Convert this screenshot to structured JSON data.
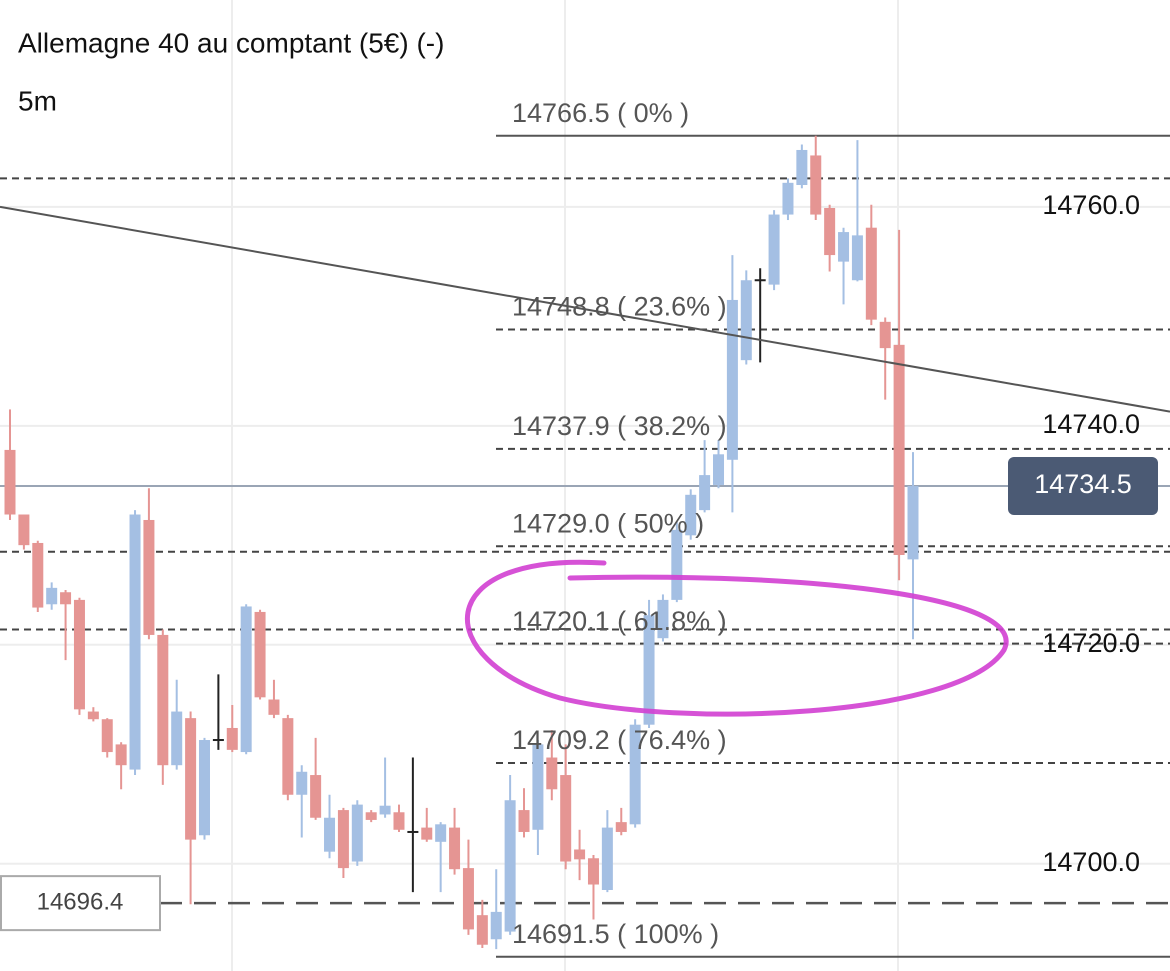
{
  "chart_data": {
    "type": "candlestick",
    "title": "Allemagne 40 au comptant (5€) (-)",
    "subtitle": "5m",
    "ylim": [
      14690.2,
      14778.9
    ],
    "yticks": [
      {
        "value": 14700,
        "label": "14700.0"
      },
      {
        "value": 14720,
        "label": "14720.0"
      },
      {
        "value": 14740,
        "label": "14740.0"
      },
      {
        "value": 14760,
        "label": "14760.0"
      }
    ],
    "grid": true,
    "up_color": "#a4bfe3",
    "down_color": "#e59593",
    "open": [
      14737.8,
      14731.9,
      14729.3,
      14723.7,
      14724.8,
      14724.1,
      14713.9,
      14713.2,
      14710.9,
      14708.6,
      14731.4,
      14720.9,
      14709.0,
      14713.3,
      14702.6,
      14711.3,
      14712.4,
      14710.2,
      14723.0,
      14715.0,
      14713.3,
      14706.3,
      14708.1,
      14701.1,
      14704.9,
      14700.2,
      14704.7,
      14704.5,
      14704.7,
      14702.9,
      14703.3,
      14702.0,
      14703.3,
      14699.6,
      14695.3,
      14693.1,
      14693.8,
      14704.9,
      14703.1,
      14709.7,
      14708.1,
      14701.3,
      14700.5,
      14697.6,
      14703.8,
      14703.6,
      14712.7,
      14720.6,
      14724.1,
      14730.0,
      14732.3,
      14734.6,
      14736.9,
      14746.0,
      14753.3,
      14752.9,
      14759.3,
      14762.0,
      14764.7,
      14759.9,
      14755.0,
      14753.3,
      14758.1,
      14749.5,
      14747.4,
      14727.8
    ],
    "high": [
      14741.5,
      14731.9,
      14729.5,
      14725.7,
      14725.0,
      14724.3,
      14714.3,
      14713.3,
      14711.1,
      14732.3,
      14734.3,
      14721.4,
      14716.8,
      14713.9,
      14711.5,
      14717.3,
      14714.5,
      14723.7,
      14723.2,
      14716.8,
      14713.6,
      14709.0,
      14711.5,
      14706.3,
      14705.1,
      14705.8,
      14704.9,
      14709.7,
      14705.4,
      14709.7,
      14705.1,
      14703.8,
      14705.1,
      14702.2,
      14696.7,
      14699.5,
      14708.1,
      14706.9,
      14711.3,
      14712.2,
      14710.9,
      14703.1,
      14700.8,
      14704.9,
      14705.1,
      14713.2,
      14724.1,
      14724.6,
      14731.2,
      14734.2,
      14738.7,
      14738.7,
      14755.6,
      14754.2,
      14754.4,
      14759.7,
      14762.6,
      14765.7,
      14766.5,
      14760.2,
      14758.1,
      14766.1,
      14760.2,
      14749.9,
      14757.9,
      14737.6
    ],
    "low": [
      14731.4,
      14728.7,
      14723.0,
      14723.2,
      14718.6,
      14713.6,
      14713.0,
      14709.7,
      14706.8,
      14708.1,
      14720.5,
      14707.2,
      14708.6,
      14696.3,
      14702.2,
      14710.4,
      14710.2,
      14710.0,
      14715.0,
      14713.3,
      14705.8,
      14702.4,
      14704.0,
      14700.5,
      14698.7,
      14699.8,
      14703.8,
      14704.2,
      14702.9,
      14697.4,
      14702.0,
      14697.4,
      14699.0,
      14693.5,
      14692.3,
      14692.2,
      14693.5,
      14702.4,
      14700.8,
      14705.8,
      14699.5,
      14698.5,
      14694.9,
      14697.4,
      14702.6,
      14703.3,
      14712.4,
      14720.3,
      14723.9,
      14729.6,
      14732.1,
      14734.3,
      14732.1,
      14745.6,
      14745.8,
      14752.4,
      14758.8,
      14761.7,
      14758.8,
      14754.1,
      14751.1,
      14753.2,
      14749.2,
      14742.4,
      14725.9,
      14720.5
    ],
    "close": [
      14731.9,
      14729.1,
      14723.4,
      14725.2,
      14723.7,
      14714.1,
      14713.2,
      14710.2,
      14709.0,
      14731.9,
      14720.9,
      14709.0,
      14713.9,
      14702.2,
      14711.3,
      14711.3,
      14710.4,
      14723.5,
      14715.2,
      14713.6,
      14706.3,
      14708.4,
      14704.2,
      14704.2,
      14699.6,
      14705.4,
      14704.0,
      14705.3,
      14703.1,
      14702.9,
      14702.2,
      14703.6,
      14699.5,
      14694.0,
      14692.6,
      14695.6,
      14705.8,
      14702.9,
      14710.9,
      14706.8,
      14700.2,
      14700.4,
      14698.1,
      14703.3,
      14702.9,
      14712.7,
      14722.7,
      14724.1,
      14730.5,
      14733.7,
      14735.5,
      14737.4,
      14751.5,
      14753.3,
      14753.3,
      14759.3,
      14762.2,
      14765.2,
      14759.3,
      14755.6,
      14757.7,
      14757.4,
      14749.7,
      14747.1,
      14728.2,
      14734.5
    ],
    "fib_levels": [
      {
        "value": 14766.5,
        "label": "14766.5 ( 0% )"
      },
      {
        "value": 14748.8,
        "label": "14748.8 ( 23.6% )"
      },
      {
        "value": 14737.9,
        "label": "14737.9 ( 38.2% )"
      },
      {
        "value": 14729.0,
        "label": "14729.0 ( 50% )"
      },
      {
        "value": 14720.1,
        "label": "14720.1 ( 61.8% )"
      },
      {
        "value": 14709.2,
        "label": "14709.2 ( 76.4% )"
      },
      {
        "value": 14691.5,
        "label": "14691.5 ( 100% )"
      }
    ],
    "dashed_levels": [
      14762.6,
      14728.5,
      14721.4
    ],
    "trendline": [
      14760.0,
      14741.3
    ],
    "marked_level": {
      "value": 14696.4,
      "label": "14696.4"
    },
    "last_price": {
      "value": 14734.5,
      "label": "14734.5"
    }
  }
}
